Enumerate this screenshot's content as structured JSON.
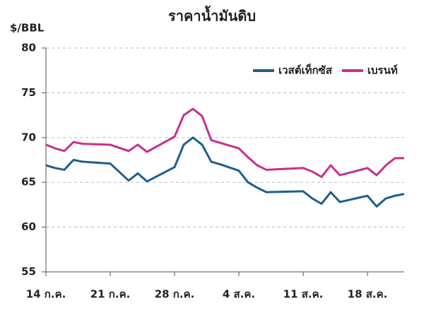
{
  "chart_data": {
    "type": "line",
    "title": "ราคาน้ำมันดิบ",
    "y_label": "$/BBL",
    "x": [
      0,
      1,
      2,
      3,
      4,
      7,
      9,
      10,
      11,
      14,
      15,
      16,
      17,
      18,
      19,
      21,
      22,
      23,
      24,
      28,
      29,
      30,
      31,
      32,
      35,
      36,
      37,
      38,
      39
    ],
    "xlim": [
      0,
      39
    ],
    "xticks": [
      {
        "value": 0,
        "label": "14 ก.ค."
      },
      {
        "value": 7,
        "label": "21 ก.ค."
      },
      {
        "value": 14,
        "label": "28 ก.ค."
      },
      {
        "value": 21,
        "label": "4 ส.ค."
      },
      {
        "value": 28,
        "label": "11 ส.ค."
      },
      {
        "value": 35,
        "label": "18 ส.ค."
      }
    ],
    "ylim": [
      55,
      80
    ],
    "yticks": [
      55,
      60,
      65,
      70,
      75,
      80
    ],
    "grid": true,
    "legend": "top-right",
    "series": [
      {
        "name": "เวสต์เท็กซัส",
        "color": "#1f5e8e",
        "values": [
          66.9,
          66.6,
          66.4,
          67.5,
          67.3,
          67.1,
          65.2,
          66.0,
          65.1,
          66.7,
          69.2,
          70.0,
          69.2,
          67.3,
          67.0,
          66.3,
          65.0,
          64.4,
          63.9,
          64.0,
          63.2,
          62.6,
          63.9,
          62.8,
          63.5,
          62.3,
          63.2,
          63.5,
          63.7
        ]
      },
      {
        "name": "เบรนท์",
        "color": "#c8308a",
        "values": [
          69.2,
          68.8,
          68.5,
          69.5,
          69.3,
          69.2,
          68.5,
          69.2,
          68.4,
          70.1,
          72.5,
          73.2,
          72.4,
          69.7,
          69.4,
          68.8,
          67.8,
          66.9,
          66.4,
          66.6,
          66.2,
          65.6,
          66.9,
          65.8,
          66.6,
          65.8,
          66.9,
          67.7,
          67.7
        ]
      }
    ]
  }
}
